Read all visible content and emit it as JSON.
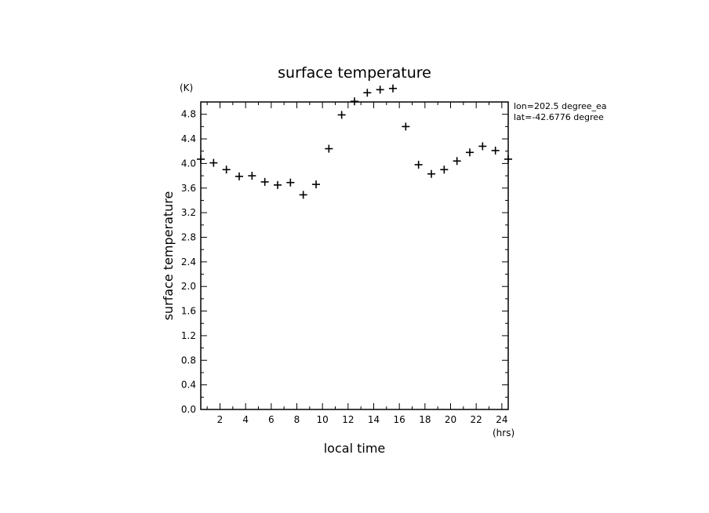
{
  "chart_data": {
    "type": "scatter",
    "title": "surface temperature",
    "xlabel": "local time",
    "ylabel": "surface temperature",
    "x_unit": "(hrs)",
    "y_unit": "(K)",
    "xlim": [
      0.5,
      24.5
    ],
    "ylim": [
      0,
      5.0
    ],
    "x_ticks": [
      2,
      4,
      6,
      8,
      10,
      12,
      14,
      16,
      18,
      20,
      22,
      24
    ],
    "y_ticks": [
      0.0,
      0.4,
      0.8,
      1.2,
      1.6,
      2.0,
      2.4,
      2.8,
      3.2,
      3.6,
      4.0,
      4.4,
      4.8
    ],
    "y_tick_labels": [
      "0.0",
      "0.4",
      "0.8",
      "1.2",
      "1.6",
      "2.0",
      "2.4",
      "2.8",
      "3.2",
      "3.6",
      "4.0",
      "4.4",
      "4.8"
    ],
    "marker": "+",
    "grid": false,
    "annotations": [
      "lon=202.5 degree_ea",
      "lat=-42.6776 degree"
    ],
    "x": [
      0.5,
      1.5,
      2.5,
      3.5,
      4.5,
      5.5,
      6.5,
      7.5,
      8.5,
      9.5,
      10.5,
      11.5,
      12.5,
      13.5,
      14.5,
      15.5,
      16.5,
      17.5,
      18.5,
      19.5,
      20.5,
      21.5,
      22.5,
      23.5,
      24.5
    ],
    "y": [
      4.07,
      4.01,
      3.9,
      3.79,
      3.8,
      3.7,
      3.65,
      3.69,
      3.49,
      3.66,
      4.24,
      4.79,
      5.01,
      5.15,
      5.2,
      5.22,
      4.6,
      3.98,
      3.83,
      3.9,
      4.04,
      4.18,
      4.28,
      4.21,
      4.07
    ]
  }
}
